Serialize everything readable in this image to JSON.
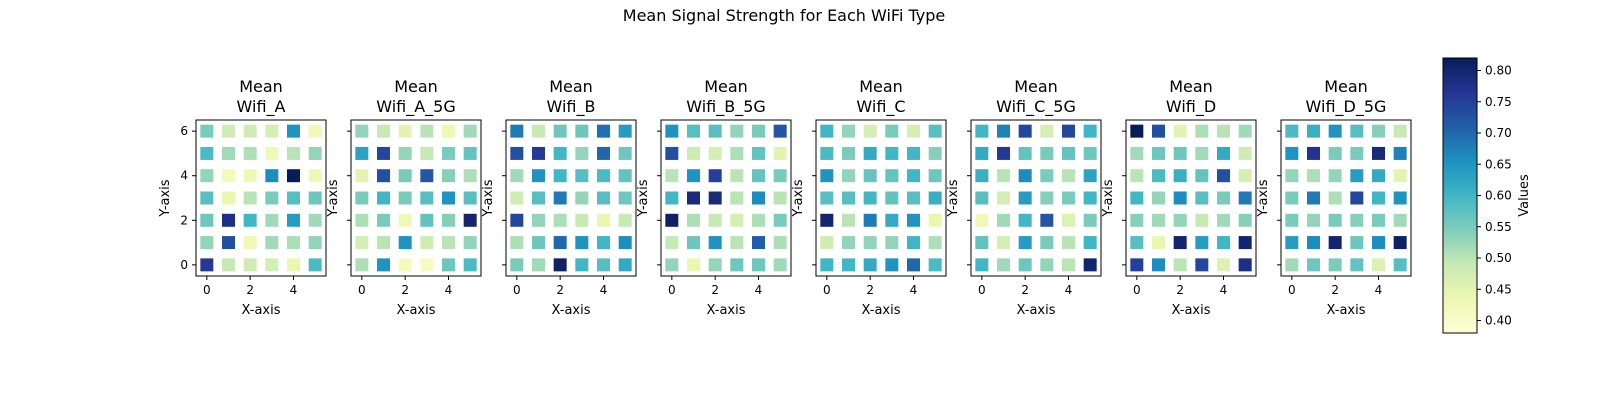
{
  "figure": {
    "suptitle": "Mean Signal Strength for Each WiFi Type",
    "colorbar": {
      "label": "Values",
      "vmin": 0.38,
      "vmax": 0.82,
      "ticks": [
        0.4,
        0.45,
        0.5,
        0.55,
        0.6,
        0.65,
        0.7,
        0.75,
        0.8
      ],
      "colormap": "YlGnBu",
      "colors": [
        "#ffffd9",
        "#edf8b1",
        "#c7e9b4",
        "#7fcdbb",
        "#41b6c4",
        "#1d91c0",
        "#225ea8",
        "#253494",
        "#081d58"
      ]
    }
  },
  "chart_data": [
    {
      "type": "heatmap",
      "title_line1": "Mean",
      "title_line2": "Wifi_A",
      "xlabel": "X-axis",
      "ylabel": "Y-axis",
      "xticks": [
        0,
        2,
        4
      ],
      "yticks": [
        0,
        2,
        4,
        6
      ],
      "z": [
        [
          0.76,
          0.49,
          0.48,
          0.47,
          0.44,
          0.59
        ],
        [
          0.53,
          0.73,
          0.43,
          0.52,
          0.51,
          0.53
        ],
        [
          0.56,
          0.78,
          0.6,
          0.52,
          0.64,
          0.52
        ],
        [
          0.58,
          0.44,
          0.5,
          0.55,
          0.58,
          0.56
        ],
        [
          0.53,
          0.42,
          0.43,
          0.66,
          0.82,
          0.43
        ],
        [
          0.59,
          0.52,
          0.51,
          0.43,
          0.5,
          0.53
        ],
        [
          0.55,
          0.48,
          0.48,
          0.47,
          0.65,
          0.43
        ]
      ]
    },
    {
      "type": "heatmap",
      "title_line1": "Mean",
      "title_line2": "Wifi_A_5G",
      "xlabel": "X-axis",
      "ylabel": "Y-axis",
      "xticks": [
        0,
        2,
        4
      ],
      "yticks": [
        0,
        2,
        4,
        6
      ],
      "z": [
        [
          0.51,
          0.65,
          0.42,
          0.41,
          0.56,
          0.59
        ],
        [
          0.47,
          0.5,
          0.65,
          0.48,
          0.5,
          0.53
        ],
        [
          0.51,
          0.55,
          0.43,
          0.57,
          0.54,
          0.8
        ],
        [
          0.55,
          0.6,
          0.55,
          0.58,
          0.65,
          0.58
        ],
        [
          0.45,
          0.73,
          0.55,
          0.72,
          0.54,
          0.51
        ],
        [
          0.63,
          0.74,
          0.53,
          0.49,
          0.55,
          0.57
        ],
        [
          0.53,
          0.49,
          0.45,
          0.5,
          0.43,
          0.52
        ]
      ]
    },
    {
      "type": "heatmap",
      "title_line1": "Mean",
      "title_line2": "Wifi_B",
      "xlabel": "X-axis",
      "ylabel": "Y-axis",
      "xticks": [
        0,
        2,
        4
      ],
      "yticks": [
        0,
        2,
        4,
        6
      ],
      "z": [
        [
          0.55,
          0.52,
          0.81,
          0.6,
          0.58,
          0.62
        ],
        [
          0.51,
          0.56,
          0.7,
          0.65,
          0.6,
          0.66
        ],
        [
          0.74,
          0.53,
          0.51,
          0.49,
          0.44,
          0.49
        ],
        [
          0.48,
          0.58,
          0.68,
          0.53,
          0.58,
          0.56
        ],
        [
          0.52,
          0.65,
          0.6,
          0.58,
          0.59,
          0.57
        ],
        [
          0.73,
          0.76,
          0.6,
          0.53,
          0.7,
          0.56
        ],
        [
          0.68,
          0.49,
          0.56,
          0.56,
          0.69,
          0.64
        ]
      ]
    },
    {
      "type": "heatmap",
      "title_line1": "Mean",
      "title_line2": "Wifi_B_5G",
      "xlabel": "X-axis",
      "ylabel": "Y-axis",
      "xticks": [
        0,
        2,
        4
      ],
      "yticks": [
        0,
        2,
        4,
        6
      ],
      "z": [
        [
          0.53,
          0.44,
          0.53,
          0.56,
          0.56,
          0.52
        ],
        [
          0.49,
          0.56,
          0.65,
          0.5,
          0.71,
          0.51
        ],
        [
          0.81,
          0.51,
          0.49,
          0.47,
          0.51,
          0.55
        ],
        [
          0.6,
          0.79,
          0.79,
          0.5,
          0.66,
          0.5
        ],
        [
          0.5,
          0.65,
          0.75,
          0.5,
          0.57,
          0.55
        ],
        [
          0.73,
          0.48,
          0.47,
          0.51,
          0.57,
          0.45
        ],
        [
          0.65,
          0.58,
          0.58,
          0.53,
          0.55,
          0.72
        ]
      ]
    },
    {
      "type": "heatmap",
      "title_line1": "Mean",
      "title_line2": "Wifi_C",
      "xlabel": "X-axis",
      "ylabel": "Y-axis",
      "xticks": [
        0,
        2,
        4
      ],
      "yticks": [
        0,
        2,
        4,
        6
      ],
      "z": [
        [
          0.6,
          0.6,
          0.62,
          0.65,
          0.7,
          0.59
        ],
        [
          0.48,
          0.53,
          0.53,
          0.53,
          0.6,
          0.51
        ],
        [
          0.8,
          0.5,
          0.68,
          0.62,
          0.65,
          0.44
        ],
        [
          0.58,
          0.58,
          0.6,
          0.57,
          0.58,
          0.61
        ],
        [
          0.65,
          0.53,
          0.57,
          0.57,
          0.6,
          0.56
        ],
        [
          0.59,
          0.55,
          0.62,
          0.6,
          0.6,
          0.54
        ],
        [
          0.6,
          0.53,
          0.47,
          0.55,
          0.47,
          0.58
        ]
      ]
    },
    {
      "type": "heatmap",
      "title_line1": "Mean",
      "title_line2": "Wifi_C_5G",
      "xlabel": "X-axis",
      "ylabel": "Y-axis",
      "xticks": [
        0,
        2,
        4
      ],
      "yticks": [
        0,
        2,
        4,
        6
      ],
      "z": [
        [
          0.6,
          0.52,
          0.56,
          0.53,
          0.5,
          0.8
        ],
        [
          0.57,
          0.47,
          0.64,
          0.55,
          0.5,
          0.6
        ],
        [
          0.43,
          0.52,
          0.6,
          0.72,
          0.46,
          0.55
        ],
        [
          0.58,
          0.47,
          0.64,
          0.54,
          0.55,
          0.6
        ],
        [
          0.61,
          0.5,
          0.66,
          0.55,
          0.5,
          0.63
        ],
        [
          0.62,
          0.76,
          0.57,
          0.55,
          0.57,
          0.56
        ],
        [
          0.6,
          0.67,
          0.74,
          0.47,
          0.74,
          0.6
        ]
      ]
    },
    {
      "type": "heatmap",
      "title_line1": "Mean",
      "title_line2": "Wifi_D",
      "xlabel": "X-axis",
      "ylabel": "Y-axis",
      "xticks": [
        0,
        2,
        4
      ],
      "yticks": [
        0,
        2,
        4,
        6
      ],
      "z": [
        [
          0.75,
          0.66,
          0.5,
          0.74,
          0.46,
          0.78
        ],
        [
          0.58,
          0.44,
          0.8,
          0.64,
          0.6,
          0.8
        ],
        [
          0.54,
          0.52,
          0.53,
          0.49,
          0.52,
          0.54
        ],
        [
          0.6,
          0.53,
          0.66,
          0.58,
          0.55,
          0.68
        ],
        [
          0.5,
          0.59,
          0.61,
          0.57,
          0.73,
          0.47
        ],
        [
          0.52,
          0.56,
          0.56,
          0.52,
          0.62,
          0.48
        ],
        [
          0.82,
          0.73,
          0.45,
          0.51,
          0.5,
          0.52
        ]
      ]
    },
    {
      "type": "heatmap",
      "title_line1": "Mean",
      "title_line2": "Wifi_D_5G",
      "xlabel": "X-axis",
      "ylabel": "Y-axis",
      "xticks": [
        0,
        2,
        4
      ],
      "yticks": [
        0,
        2,
        4,
        6
      ],
      "z": [
        [
          0.52,
          0.56,
          0.55,
          0.57,
          0.46,
          0.58
        ],
        [
          0.64,
          0.66,
          0.8,
          0.56,
          0.66,
          0.81
        ],
        [
          0.55,
          0.53,
          0.55,
          0.54,
          0.55,
          0.52
        ],
        [
          0.55,
          0.68,
          0.51,
          0.74,
          0.6,
          0.65
        ],
        [
          0.53,
          0.51,
          0.53,
          0.64,
          0.62,
          0.45
        ],
        [
          0.65,
          0.77,
          0.55,
          0.55,
          0.79,
          0.67
        ],
        [
          0.59,
          0.61,
          0.65,
          0.58,
          0.54,
          0.49
        ]
      ]
    }
  ]
}
